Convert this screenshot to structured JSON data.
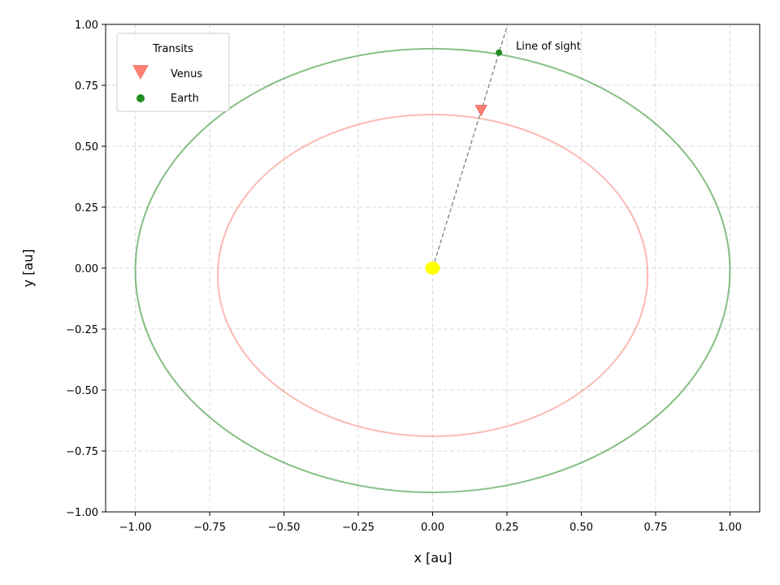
{
  "chart_data": {
    "type": "scatter",
    "title": "",
    "xlabel": "x [au]",
    "ylabel": "y [au]",
    "xlim": [
      -1.1,
      1.1
    ],
    "ylim": [
      -1.0,
      1.0
    ],
    "xticks": [
      -1.0,
      -0.75,
      -0.5,
      -0.25,
      0.0,
      0.25,
      0.5,
      0.75,
      1.0
    ],
    "yticks": [
      -1.0,
      -0.75,
      -0.5,
      -0.25,
      0.0,
      0.25,
      0.5,
      0.75,
      1.0
    ],
    "xtick_labels": [
      "−1.00",
      "−0.75",
      "−0.50",
      "−0.25",
      "0.00",
      "0.25",
      "0.50",
      "0.75",
      "1.00"
    ],
    "ytick_labels": [
      "−1.00",
      "−0.75",
      "−0.50",
      "−0.25",
      "0.00",
      "0.25",
      "0.50",
      "0.75",
      "1.00"
    ],
    "grid": true,
    "legend": {
      "title": "Transits",
      "placement": "top-left",
      "entries": [
        {
          "label": "Venus",
          "marker": "triangle-down",
          "color": "#fa8072"
        },
        {
          "label": "Earth",
          "marker": "circle",
          "color": "#228b22"
        }
      ]
    },
    "orbits": [
      {
        "body": "Venus",
        "a": 0.723,
        "b": 0.66,
        "cy": -0.03,
        "color": "#fa8072"
      },
      {
        "body": "Earth",
        "a": 1.0,
        "b": 0.91,
        "cy": -0.01,
        "color": "#228b22"
      }
    ],
    "sun": {
      "x": 0.0,
      "y": 0.0,
      "color": "#ffff00"
    },
    "points": [
      {
        "name": "Venus",
        "x": 0.163,
        "y": 0.645,
        "marker": "triangle-down",
        "color": "#fa8072"
      },
      {
        "name": "Earth",
        "x": 0.223,
        "y": 0.884,
        "marker": "circle",
        "color": "#228b22"
      }
    ],
    "line_of_sight": {
      "x1": 0.0,
      "y1": 0.0,
      "x2": 0.25,
      "y2": 0.99,
      "color": "#808080",
      "style": "dashed"
    },
    "annotations": [
      {
        "text": "Line of sight",
        "x": 0.27,
        "y": 0.9
      }
    ]
  }
}
